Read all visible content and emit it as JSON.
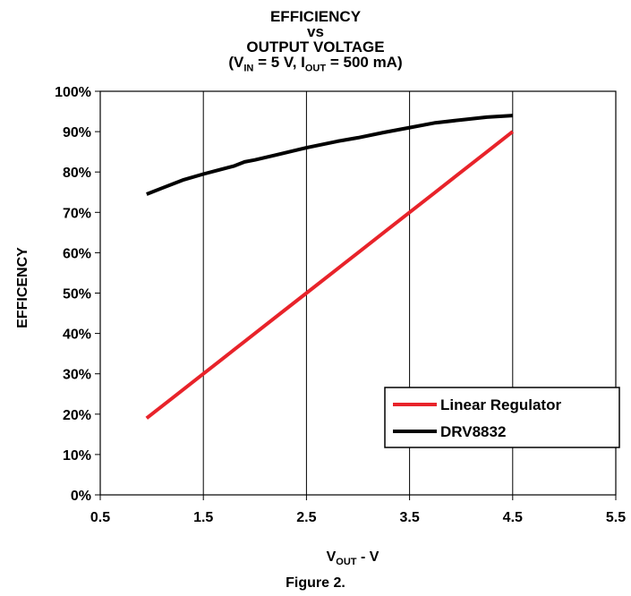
{
  "title": {
    "line1": "EFFICIENCY",
    "line2": "vs",
    "line3": "OUTPUT VOLTAGE",
    "cond_open": "(V",
    "cond_vin_sub": "IN",
    "cond_mid": " = 5 V, I",
    "cond_iout_sub": "OUT",
    "cond_close": " = 500 mA)"
  },
  "caption": "Figure 2.",
  "chart_data": {
    "type": "line",
    "title": "EFFICIENCY vs OUTPUT VOLTAGE (VIN = 5 V, IOUT = 500 mA)",
    "xlabel_main": "V",
    "xlabel_sub": "OUT",
    "xlabel_suffix": " - V",
    "ylabel": "EFFICENCY",
    "xlim": [
      0.5,
      5.5
    ],
    "ylim": [
      0,
      100
    ],
    "xticks": [
      0.5,
      1.5,
      2.5,
      3.5,
      4.5,
      5.5
    ],
    "xtick_labels": [
      "0.5",
      "1.5",
      "2.5",
      "3.5",
      "4.5",
      "5.5"
    ],
    "yticks": [
      0,
      10,
      20,
      30,
      40,
      50,
      60,
      70,
      80,
      90,
      100
    ],
    "ytick_labels": [
      "0%",
      "10%",
      "20%",
      "30%",
      "40%",
      "50%",
      "60%",
      "70%",
      "80%",
      "90%",
      "100%"
    ],
    "grid": "vertical",
    "legend_position": "bottom-right",
    "series": [
      {
        "name": "Linear Regulator",
        "color": "#e8232a",
        "x": [
          0.95,
          1.2,
          1.4,
          1.5,
          1.65,
          1.8,
          2.0,
          2.25,
          2.5,
          2.8,
          3.0,
          3.25,
          3.5,
          3.75,
          4.0,
          4.25,
          4.5
        ],
        "y": [
          19,
          24,
          28,
          30,
          33,
          36,
          40,
          45,
          50,
          56,
          60,
          65,
          70,
          75,
          80,
          85,
          90
        ]
      },
      {
        "name": "DRV8832",
        "color": "#000000",
        "x": [
          0.95,
          1.1,
          1.3,
          1.5,
          1.65,
          1.8,
          1.9,
          2.0,
          2.2,
          2.5,
          2.8,
          3.0,
          3.25,
          3.5,
          3.75,
          4.0,
          4.25,
          4.5
        ],
        "y": [
          74.5,
          76,
          78,
          79.5,
          80.5,
          81.5,
          82.5,
          83,
          84.2,
          86,
          87.6,
          88.5,
          89.8,
          91,
          92.2,
          92.9,
          93.6,
          94
        ]
      }
    ]
  }
}
